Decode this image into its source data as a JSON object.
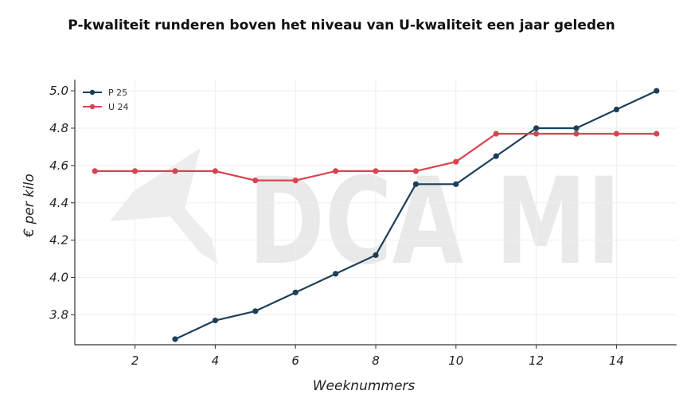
{
  "colors": {
    "p25": "#1d3f5a",
    "u24": "#d9434f",
    "grid": "#eeeeee",
    "axis": "#333333",
    "watermark": "#e9e9e9"
  },
  "watermark": {
    "text": "DCA MI"
  },
  "chart_data": {
    "type": "line",
    "title": "P-kwaliteit runderen boven het niveau van U-kwaliteit een jaar geleden",
    "xlabel": "Weeknummers",
    "ylabel": "€ per kilo",
    "xlim": [
      0.5,
      15.5
    ],
    "ylim": [
      3.64,
      5.06
    ],
    "x_ticks": [
      2,
      4,
      6,
      8,
      10,
      12,
      14
    ],
    "y_ticks": [
      3.8,
      4.0,
      4.2,
      4.4,
      4.6,
      4.8,
      5.0
    ],
    "x_tick_labels": [
      "2",
      "4",
      "6",
      "8",
      "10",
      "12",
      "14"
    ],
    "y_tick_labels": [
      "3.8",
      "4.0",
      "4.2",
      "4.4",
      "4.6",
      "4.8",
      "5.0"
    ],
    "grid": true,
    "legend_position": "top-left",
    "series": [
      {
        "name": "P 25",
        "color": "#1d3f5a",
        "x": [
          3,
          4,
          5,
          6,
          7,
          8,
          9,
          10,
          11,
          12,
          13,
          14,
          15
        ],
        "y": [
          3.67,
          3.77,
          3.82,
          3.92,
          4.02,
          4.12,
          4.5,
          4.5,
          4.65,
          4.8,
          4.8,
          4.9,
          5.0
        ]
      },
      {
        "name": "U 24",
        "color": "#d9434f",
        "x": [
          1,
          2,
          3,
          4,
          5,
          6,
          7,
          8,
          9,
          10,
          11,
          12,
          13,
          14,
          15
        ],
        "y": [
          4.57,
          4.57,
          4.57,
          4.57,
          4.52,
          4.52,
          4.57,
          4.57,
          4.57,
          4.62,
          4.77,
          4.77,
          4.77,
          4.77,
          4.77
        ]
      }
    ]
  }
}
